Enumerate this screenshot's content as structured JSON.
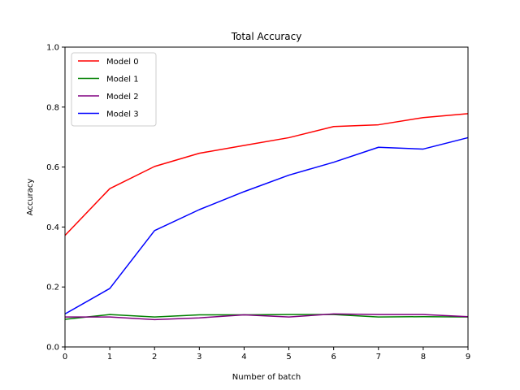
{
  "chart_data": {
    "type": "line",
    "title": "Total Accuracy",
    "xlabel": "Number of batch",
    "ylabel": "Accuracy",
    "xlim": [
      0,
      9
    ],
    "ylim": [
      0.0,
      1.0
    ],
    "x": [
      0,
      1,
      2,
      3,
      4,
      5,
      6,
      7,
      8,
      9
    ],
    "xticks": [
      "0",
      "1",
      "2",
      "3",
      "4",
      "5",
      "6",
      "7",
      "8",
      "9"
    ],
    "yticks": [
      "0.0",
      "0.2",
      "0.4",
      "0.6",
      "0.8",
      "1.0"
    ],
    "grid": false,
    "legend_position": "top-left",
    "series": [
      {
        "name": "Model 0",
        "color": "#ff0000",
        "values": [
          0.372,
          0.528,
          0.602,
          0.646,
          0.672,
          0.698,
          0.735,
          0.741,
          0.765,
          0.778
        ]
      },
      {
        "name": "Model 1",
        "color": "#008000",
        "values": [
          0.092,
          0.108,
          0.1,
          0.107,
          0.107,
          0.108,
          0.108,
          0.1,
          0.101,
          0.1
        ]
      },
      {
        "name": "Model 2",
        "color": "#800080",
        "values": [
          0.1,
          0.1,
          0.091,
          0.097,
          0.107,
          0.1,
          0.11,
          0.108,
          0.108,
          0.101
        ]
      },
      {
        "name": "Model 3",
        "color": "#0000ff",
        "values": [
          0.11,
          0.195,
          0.388,
          0.458,
          0.518,
          0.573,
          0.616,
          0.666,
          0.66,
          0.698
        ]
      }
    ]
  }
}
